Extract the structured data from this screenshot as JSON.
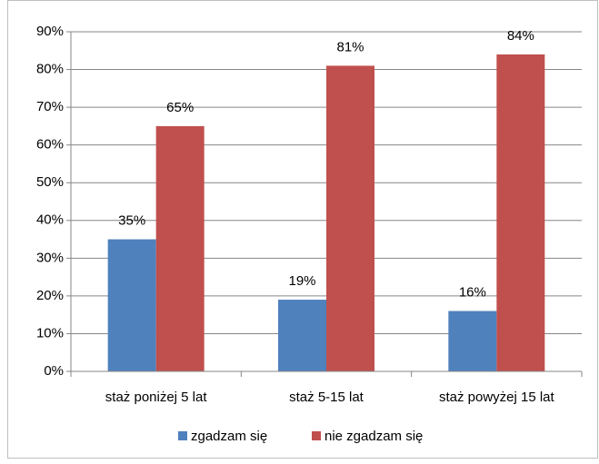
{
  "chart_data": {
    "type": "bar",
    "categories": [
      "staż poniżej 5 lat",
      "staż 5-15 lat",
      "staż powyżej 15 lat"
    ],
    "series": [
      {
        "name": "zgadzam się",
        "color": "#4f81bd",
        "values": [
          35,
          19,
          16
        ],
        "value_labels": [
          "35%",
          "19%",
          "16%"
        ]
      },
      {
        "name": "nie zgadzam się",
        "color": "#c0504d",
        "values": [
          65,
          81,
          84
        ],
        "value_labels": [
          "65%",
          "81%",
          "84%"
        ]
      }
    ],
    "ylim": [
      0,
      90
    ],
    "yticks": [
      {
        "value": 0,
        "label": "0%"
      },
      {
        "value": 10,
        "label": "10%"
      },
      {
        "value": 20,
        "label": "20%"
      },
      {
        "value": 30,
        "label": "30%"
      },
      {
        "value": 40,
        "label": "40%"
      },
      {
        "value": 50,
        "label": "50%"
      },
      {
        "value": 60,
        "label": "60%"
      },
      {
        "value": 70,
        "label": "70%"
      },
      {
        "value": 80,
        "label": "80%"
      },
      {
        "value": 90,
        "label": "90%"
      }
    ],
    "grid": true,
    "legend": "bottom"
  }
}
